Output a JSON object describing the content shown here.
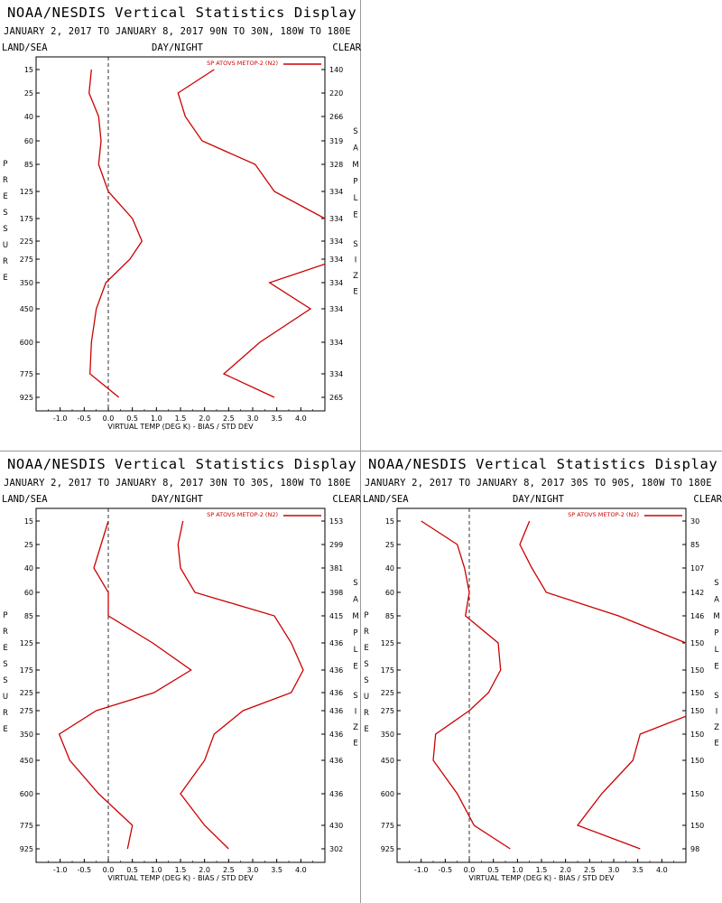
{
  "common": {
    "title": "NOAA/NESDIS Vertical Statistics Display",
    "land_sea": "LAND/SEA",
    "day_night": "DAY/NIGHT",
    "clear": "CLEAR",
    "xlabel": "VIRTUAL TEMP (DEG K) - BIAS / STD DEV",
    "legend": "SP ATOVS METOP-2 (N2)",
    "pressure_word": [
      "P",
      "R",
      "E",
      "S",
      "S",
      "U",
      "R",
      "E"
    ],
    "sample_word": [
      "S",
      "A",
      "M",
      "P",
      "L",
      "E"
    ],
    "size_word": [
      "S",
      "I",
      "Z",
      "E"
    ],
    "series_color": "#cc0000",
    "x_ticks": [
      "-1.0",
      "-0.5",
      "0.0",
      "0.5",
      "1.0",
      "1.5",
      "2.0",
      "2.5",
      "3.0",
      "3.5",
      "4.0"
    ],
    "pressure_levels": [
      "15",
      "25",
      "40",
      "60",
      "85",
      "125",
      "175",
      "225",
      "275",
      "350",
      "450",
      "600",
      "775",
      "925"
    ]
  },
  "panels": [
    {
      "subtitle": "JANUARY 2, 2017 TO JANUARY 8, 2017 90N TO 30N, 180W TO 180E",
      "chart_data": {
        "type": "line",
        "xlim": [
          -1.5,
          4.5
        ],
        "bias": [
          -0.35,
          -0.4,
          -0.2,
          -0.15,
          -0.2,
          0.0,
          0.5,
          0.7,
          0.45,
          -0.05,
          -0.25,
          -0.35,
          -0.38,
          0.22
        ],
        "std_dev": [
          2.2,
          1.45,
          1.6,
          1.95,
          3.05,
          3.45,
          4.5,
          4.8,
          4.8,
          3.35,
          4.2,
          3.15,
          2.4,
          3.45
        ],
        "sample_size": [
          "140",
          "220",
          "266",
          "319",
          "328",
          "334",
          "334",
          "334",
          "334",
          "334",
          "334",
          "334",
          "334",
          "265"
        ]
      }
    },
    {
      "subtitle": "JANUARY 2, 2017 TO JANUARY 8, 2017 30N TO 30S, 180W TO 180E",
      "chart_data": {
        "type": "line",
        "xlim": [
          -1.5,
          4.5
        ],
        "bias": [
          0.0,
          -0.15,
          -0.3,
          0.0,
          0.0,
          0.92,
          1.72,
          0.95,
          -0.25,
          -1.02,
          -0.8,
          -0.2,
          0.5,
          0.4
        ],
        "std_dev": [
          1.55,
          1.45,
          1.5,
          1.8,
          3.45,
          3.8,
          4.05,
          3.8,
          2.8,
          2.2,
          2.0,
          1.5,
          2.0,
          2.5
        ],
        "sample_size": [
          "153",
          "299",
          "381",
          "398",
          "415",
          "436",
          "436",
          "436",
          "436",
          "436",
          "436",
          "436",
          "430",
          "302"
        ]
      }
    },
    {
      "subtitle": "JANUARY 2, 2017 TO JANUARY 8, 2017 30S TO 90S, 180W TO 180E",
      "chart_data": {
        "type": "line",
        "xlim": [
          -1.5,
          4.5
        ],
        "bias": [
          -1.0,
          -0.25,
          -0.1,
          0.0,
          -0.08,
          0.6,
          0.65,
          0.4,
          0.0,
          -0.7,
          -0.75,
          -0.25,
          0.1,
          0.85
        ],
        "std_dev": [
          1.25,
          1.05,
          1.3,
          1.6,
          3.1,
          4.5,
          4.8,
          4.8,
          4.8,
          3.55,
          3.4,
          2.75,
          2.25,
          3.55
        ],
        "sample_size": [
          "30",
          "85",
          "107",
          "142",
          "146",
          "150",
          "150",
          "150",
          "150",
          "150",
          "150",
          "150",
          "150",
          "98"
        ]
      }
    }
  ]
}
